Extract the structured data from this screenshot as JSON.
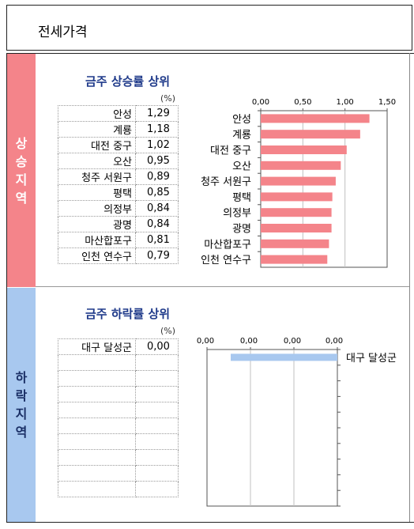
{
  "header": {
    "title": "전세가격"
  },
  "sections": {
    "rise": {
      "side_label": "상승지역",
      "title": "금주 상승률 상위",
      "unit": "(%)"
    },
    "fall": {
      "side_label": "하락지역",
      "title": "금주 하락률 상위",
      "unit": "(%)"
    }
  },
  "chart_data": [
    {
      "type": "bar",
      "orientation": "horizontal",
      "title": "금주 상승률 상위",
      "unit": "(%)",
      "categories": [
        "안성",
        "계룡",
        "대전 중구",
        "오산",
        "청주 서원구",
        "평택",
        "의정부",
        "광명",
        "마산합포구",
        "인천 연수구"
      ],
      "values": [
        1.29,
        1.18,
        1.02,
        0.95,
        0.89,
        0.85,
        0.84,
        0.84,
        0.81,
        0.79
      ],
      "value_labels": [
        "1,29",
        "1,18",
        "1,02",
        "0,95",
        "0,89",
        "0,85",
        "0,84",
        "0,84",
        "0,81",
        "0,79"
      ],
      "xlim": [
        0,
        1.5
      ],
      "tick_labels": [
        "0,00",
        "0,50",
        "1,00",
        "1,50"
      ],
      "tick_values": [
        0,
        0.5,
        1.0,
        1.5
      ],
      "grid": true,
      "bar_color": "#f4848a",
      "axis_position": "top"
    },
    {
      "type": "bar",
      "orientation": "horizontal",
      "title": "금주 하락률 상위",
      "unit": "(%)",
      "categories": [
        "대구 달성군"
      ],
      "values": [
        0.0
      ],
      "value_labels": [
        "0,00"
      ],
      "tick_labels": [
        "0,00",
        "0,00",
        "0,00",
        "0,00"
      ],
      "grid": true,
      "bar_color": "#a8c8ef",
      "axis_position": "top",
      "rows": 10
    }
  ]
}
